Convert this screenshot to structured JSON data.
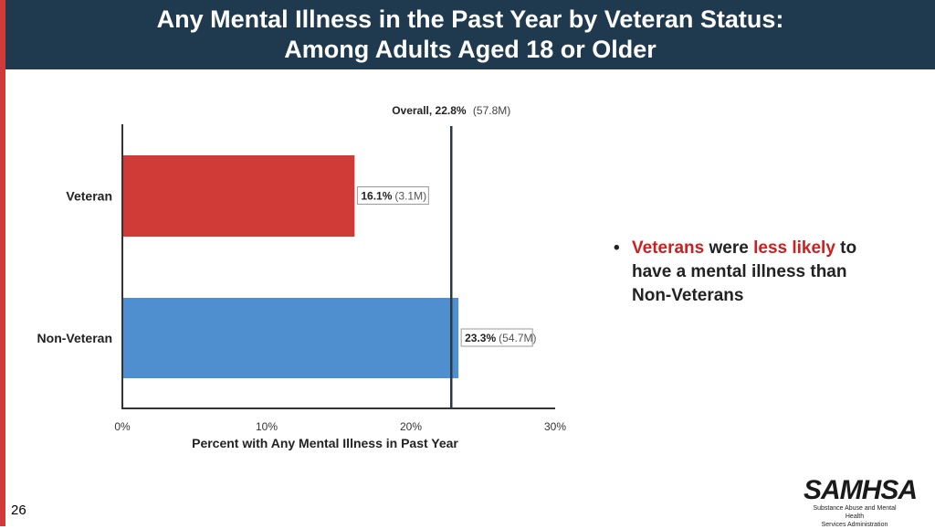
{
  "header": {
    "title_line1": "Any Mental Illness in the Past Year by Veteran Status:",
    "title_line2": "Among Adults Aged 18 or Older"
  },
  "chart_data": {
    "type": "bar",
    "orientation": "horizontal",
    "categories": [
      "Veteran",
      "Non-Veteran"
    ],
    "values": [
      16.1,
      23.3
    ],
    "value_labels": [
      "16.1%",
      "23.3%"
    ],
    "count_labels": [
      "(3.1M)",
      "(54.7M)"
    ],
    "colors": [
      "#d13b37",
      "#4f8fcf"
    ],
    "xlabel": "Percent with Any Mental Illness in Past Year",
    "xlim": [
      0,
      30
    ],
    "xticks": [
      0,
      10,
      20,
      30
    ],
    "xtick_labels": [
      "0%",
      "10%",
      "20%",
      "30%"
    ],
    "reference_line": {
      "value": 22.8,
      "label_bold": "Overall, 22.8%",
      "label_count": "(57.8M)"
    },
    "grid": false
  },
  "bullet": {
    "word1": "Veterans",
    "word2": " were ",
    "word3": "less likely",
    "word4": " to have a mental illness than Non-Veterans"
  },
  "footer": {
    "page_number": "26",
    "logo_text": "SAMHSA",
    "logo_sub_line1": "Substance Abuse and Mental Health",
    "logo_sub_line2": "Services Administration"
  }
}
